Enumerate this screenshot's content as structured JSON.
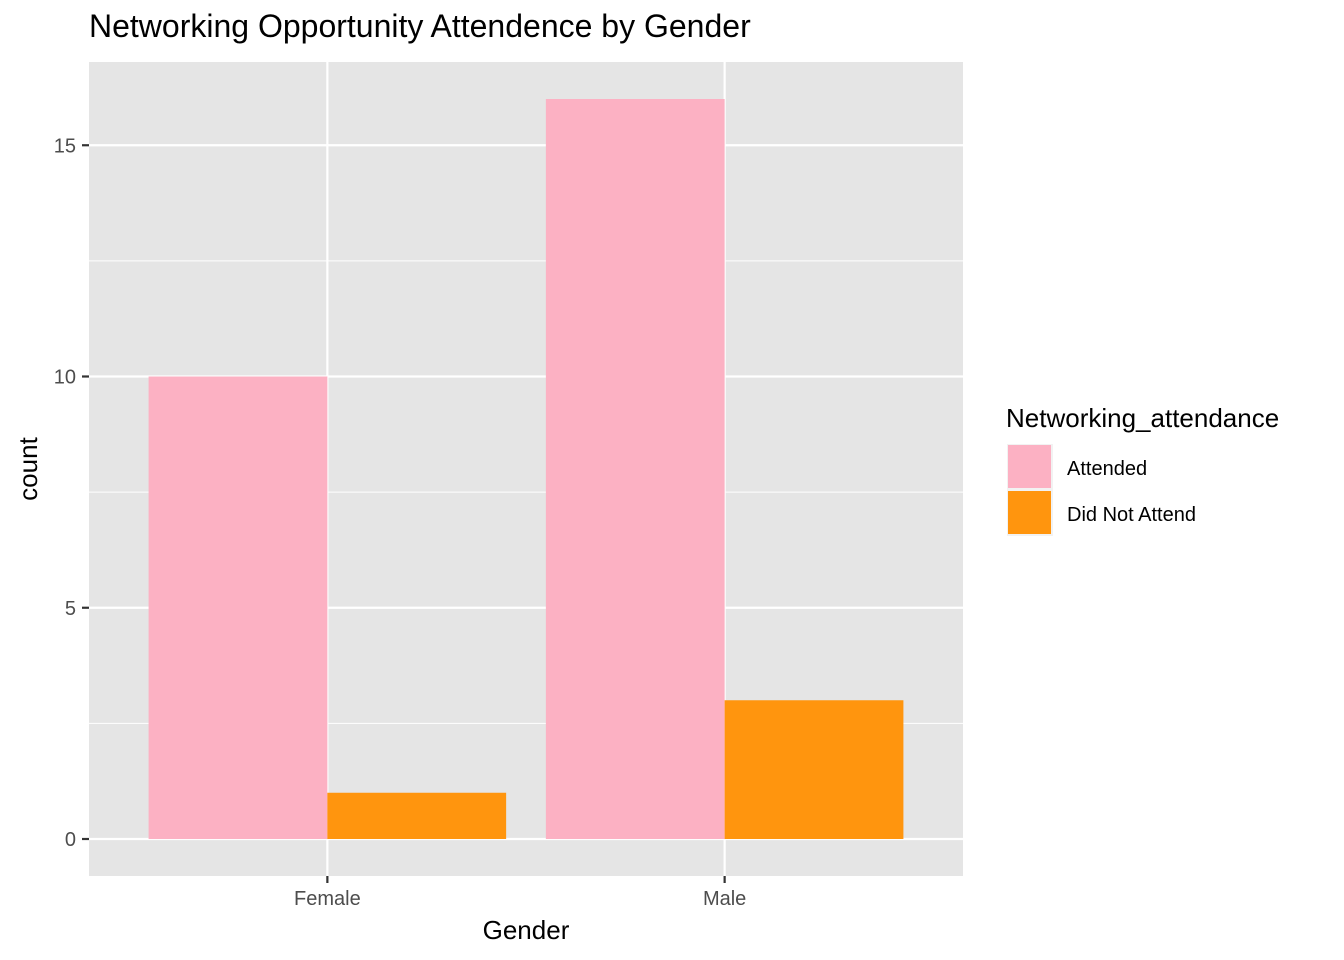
{
  "chart_data": {
    "type": "bar",
    "title": "Networking Opportunity Attendence by Gender",
    "xlabel": "Gender",
    "ylabel": "count",
    "categories": [
      "Female",
      "Male"
    ],
    "series": [
      {
        "name": "Attended",
        "values": [
          10,
          16
        ],
        "color": "#FCB1C3"
      },
      {
        "name": "Did Not Attend",
        "values": [
          1,
          3
        ],
        "color": "#FF950E"
      }
    ],
    "ylim": [
      -0.8,
      16.8
    ],
    "yticks": [
      0,
      5,
      10,
      15
    ],
    "legend_title": "Networking_attendance",
    "legend_position": "right",
    "grid": true,
    "panel_background": "#E5E5E5"
  }
}
